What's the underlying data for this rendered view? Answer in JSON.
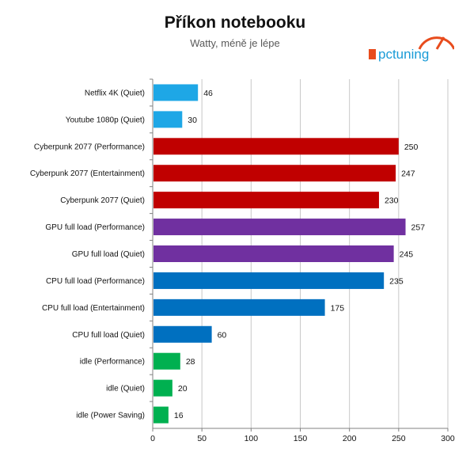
{
  "chart_data": {
    "type": "bar",
    "orientation": "horizontal",
    "title": "Příkon notebooku",
    "subtitle": "Watty, méně je lépe",
    "categories": [
      "Netflix 4K (Quiet)",
      "Youtube 1080p (Quiet)",
      "Cyberpunk 2077 (Performance)",
      "Cyberpunk 2077 (Entertainment)",
      "Cyberpunk 2077 (Quiet)",
      "GPU full load (Performance)",
      "GPU full load (Quiet)",
      "CPU full load (Performance)",
      "CPU full load (Entertainment)",
      "CPU full load (Quiet)",
      "idle (Performance)",
      "idle (Quiet)",
      "idle (Power Saving)"
    ],
    "values": [
      46,
      30,
      250,
      247,
      230,
      257,
      245,
      235,
      175,
      60,
      28,
      20,
      16
    ],
    "colors": [
      "#1ea7e6",
      "#1ea7e6",
      "#c00000",
      "#c00000",
      "#c00000",
      "#7030a0",
      "#7030a0",
      "#0070c0",
      "#0070c0",
      "#0070c0",
      "#00b050",
      "#00b050",
      "#00b050"
    ],
    "xlim": [
      0,
      300
    ],
    "xticks": [
      0,
      50,
      100,
      150,
      200,
      250,
      300
    ],
    "grid": true,
    "legend": "none"
  },
  "logo": {
    "text": "pctuning",
    "accent_color": "#e84c1d",
    "text_color": "#1a9bd7"
  }
}
